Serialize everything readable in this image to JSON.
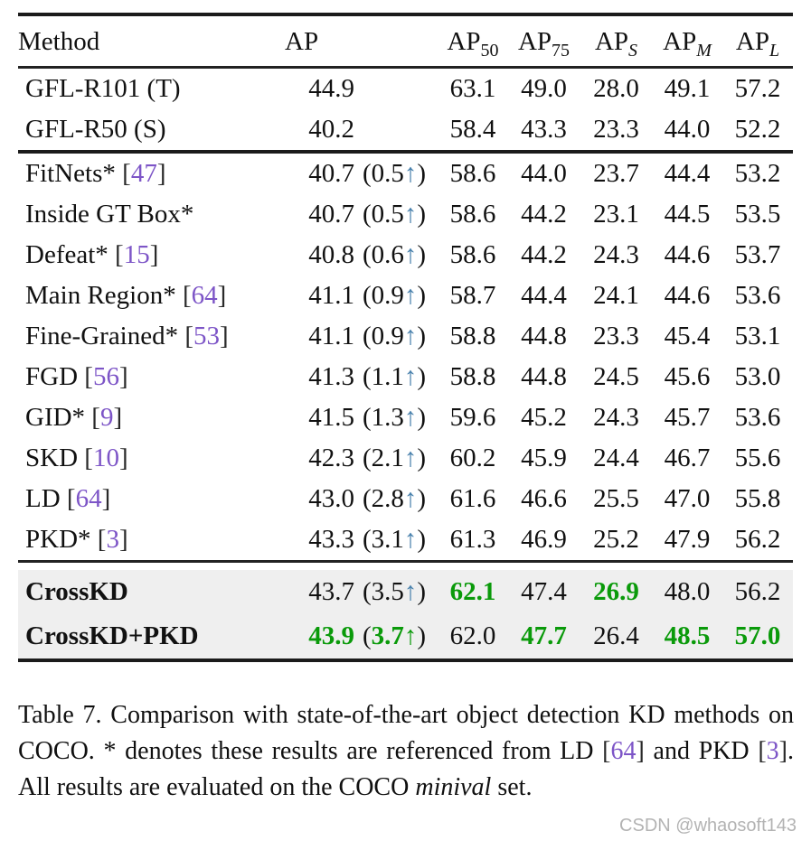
{
  "colors": {
    "text": "#111111",
    "citation_purple": "#7d55c7",
    "bracket_dark": "#2a2a2a",
    "good_green": "#0a9a0a",
    "arrow_blue": "#4a82ad",
    "highlight_bg": "#efefef",
    "rule_black": "#1b1b1b",
    "watermark_gray": "#b3b3b3"
  },
  "table": {
    "header": [
      {
        "base": "Method"
      },
      {
        "base": "AP"
      },
      {
        "base": "AP",
        "sub": "50"
      },
      {
        "base": "AP",
        "sub": "75"
      },
      {
        "base": "AP",
        "sub": "S",
        "italic": true
      },
      {
        "base": "AP",
        "sub": "M",
        "italic": true
      },
      {
        "base": "AP",
        "sub": "L",
        "italic": true
      }
    ],
    "sections": [
      {
        "name": "teacher-student",
        "rows": [
          {
            "method": "GFL-R101 (T)",
            "ap": "44.9",
            "cols": [
              "63.1",
              "49.0",
              "28.0",
              "49.1",
              "57.2"
            ]
          },
          {
            "method": "GFL-R50 (S)",
            "ap": "40.2",
            "cols": [
              "58.4",
              "43.3",
              "23.3",
              "44.0",
              "52.2"
            ]
          }
        ]
      },
      {
        "name": "kd-methods",
        "rows": [
          {
            "method": "FitNets*",
            "cite": "47",
            "ap": "40.7",
            "delta": "0.5",
            "cols": [
              "58.6",
              "44.0",
              "23.7",
              "44.4",
              "53.2"
            ]
          },
          {
            "method": "Inside GT Box*",
            "ap": "40.7",
            "delta": "0.5",
            "cols": [
              "58.6",
              "44.2",
              "23.1",
              "44.5",
              "53.5"
            ]
          },
          {
            "method": "Defeat*",
            "cite": "15",
            "ap": "40.8",
            "delta": "0.6",
            "cols": [
              "58.6",
              "44.2",
              "24.3",
              "44.6",
              "53.7"
            ]
          },
          {
            "method": "Main Region*",
            "cite": "64",
            "ap": "41.1",
            "delta": "0.9",
            "cols": [
              "58.7",
              "44.4",
              "24.1",
              "44.6",
              "53.6"
            ]
          },
          {
            "method": "Fine-Grained*",
            "cite": "53",
            "ap": "41.1",
            "delta": "0.9",
            "cols": [
              "58.8",
              "44.8",
              "23.3",
              "45.4",
              "53.1"
            ]
          },
          {
            "method": "FGD",
            "cite": "56",
            "ap": "41.3",
            "delta": "1.1",
            "cols": [
              "58.8",
              "44.8",
              "24.5",
              "45.6",
              "53.0"
            ]
          },
          {
            "method": "GID*",
            "cite": "9",
            "ap": "41.5",
            "delta": "1.3",
            "cols": [
              "59.6",
              "45.2",
              "24.3",
              "45.7",
              "53.6"
            ]
          },
          {
            "method": "SKD",
            "cite": "10",
            "ap": "42.3",
            "delta": "2.1",
            "cols": [
              "60.2",
              "45.9",
              "24.4",
              "46.7",
              "55.6"
            ]
          },
          {
            "method": "LD",
            "cite": "64",
            "ap": "43.0",
            "delta": "2.8",
            "cols": [
              "61.6",
              "46.6",
              "25.5",
              "47.0",
              "55.8"
            ]
          },
          {
            "method": "PKD*",
            "cite": "3",
            "ap": "43.3",
            "delta": "3.1",
            "cols": [
              "61.3",
              "46.9",
              "25.2",
              "47.9",
              "56.2"
            ]
          }
        ]
      },
      {
        "name": "ours",
        "highlight": true,
        "rows": [
          {
            "method": "CrossKD",
            "bold": true,
            "ap": "43.7",
            "delta": "3.5",
            "arrow": "blue",
            "cols": [
              "62.1",
              "47.4",
              "26.9",
              "48.0",
              "56.2"
            ],
            "green_cols": [
              0,
              2
            ]
          },
          {
            "method": "CrossKD+PKD",
            "bold": true,
            "ap": "43.9",
            "ap_green": true,
            "delta": "3.7",
            "delta_green": true,
            "arrow": "green",
            "cols": [
              "62.0",
              "47.7",
              "26.4",
              "48.5",
              "57.0"
            ],
            "green_cols": [
              1,
              3,
              4
            ]
          }
        ]
      }
    ],
    "up_arrow": "↑"
  },
  "caption": {
    "segments": [
      {
        "type": "text",
        "value": "Table 7.  Comparison with state-of-the-art object detection KD methods on COCO. * denotes these results are referenced from LD "
      },
      {
        "type": "cite",
        "value": "64"
      },
      {
        "type": "text",
        "value": " and PKD "
      },
      {
        "type": "cite",
        "value": "3"
      },
      {
        "type": "text",
        "value": ".  All results are evaluated on the COCO "
      },
      {
        "type": "italic",
        "value": "minival"
      },
      {
        "type": "text",
        "value": " set."
      }
    ]
  },
  "watermark": {
    "text": "CSDN @whaosoft143"
  }
}
